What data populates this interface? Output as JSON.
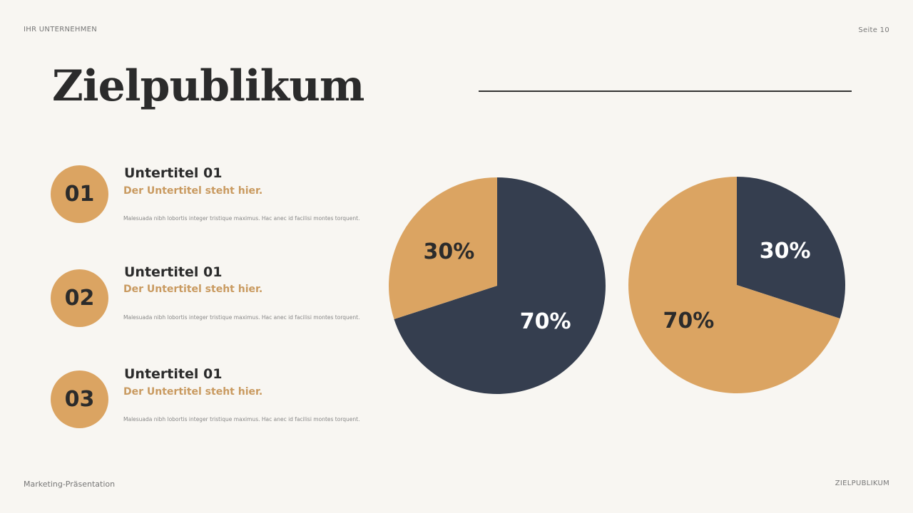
{
  "header": {
    "company": "IHR UNTERNEHMEN",
    "page": "Seite 10"
  },
  "title": "Zielpublikum",
  "items": [
    {
      "number": "01",
      "subtitle": "Untertitel 01",
      "tagline": "Der Untertitel steht hier.",
      "text": "Malesuada nibh lobortis integer tristique maximus. Hac anec id facilisi montes torquent."
    },
    {
      "number": "02",
      "subtitle": "Untertitel 01",
      "tagline": "Der Untertitel steht hier.",
      "text": "Malesuada nibh lobortis integer tristique maximus. Hac anec id facilisi montes torquent."
    },
    {
      "number": "03",
      "subtitle": "Untertitel 01",
      "tagline": "Der Untertitel steht hier.",
      "text": "Malesuada nibh lobortis integer tristique maximus. Hac anec id facilisi montes torquent."
    }
  ],
  "footer": {
    "left": "Marketing-Präsentation",
    "right": "ZIELPUBLIKUM"
  },
  "colors": {
    "orange": "#dba462",
    "navy": "#353e4f",
    "background": "#f8f6f2"
  },
  "chart_data": [
    {
      "type": "pie",
      "slices": [
        {
          "value": 70,
          "label": "70%",
          "color": "#353e4f",
          "label_color": "#ffffff"
        },
        {
          "value": 30,
          "label": "30%",
          "color": "#dba462",
          "label_color": "#2b2b2b"
        }
      ]
    },
    {
      "type": "pie",
      "slices": [
        {
          "value": 30,
          "label": "30%",
          "color": "#353e4f",
          "label_color": "#ffffff"
        },
        {
          "value": 70,
          "label": "70%",
          "color": "#dba462",
          "label_color": "#2b2b2b"
        }
      ]
    }
  ]
}
